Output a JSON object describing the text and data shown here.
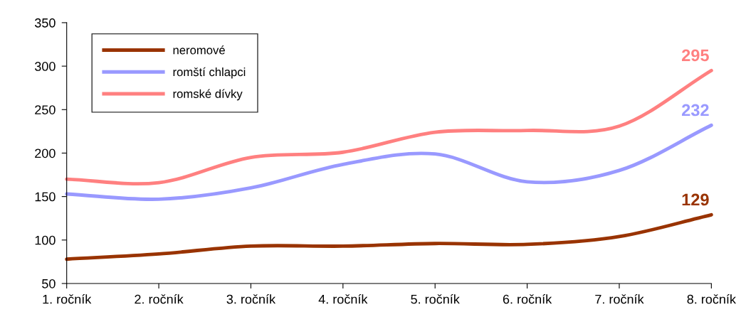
{
  "chart_data": {
    "type": "line",
    "categories": [
      "1. ročník",
      "2. ročník",
      "3. ročník",
      "4. ročník",
      "5. ročník",
      "6. ročník",
      "7. ročník",
      "8. ročník"
    ],
    "series": [
      {
        "name": "neromové",
        "color": "#993300",
        "values": [
          78,
          84,
          93,
          93,
          96,
          95,
          104,
          129
        ],
        "value_labels": [
          null,
          null,
          null,
          null,
          null,
          null,
          null,
          "129"
        ]
      },
      {
        "name": "romští chlapci",
        "color": "#9999ff",
        "values": [
          153,
          147,
          160,
          187,
          199,
          167,
          180,
          232
        ],
        "value_labels": [
          null,
          null,
          null,
          null,
          null,
          null,
          null,
          "232"
        ]
      },
      {
        "name": "romské dívky",
        "color": "#ff8080",
        "values": [
          170,
          166,
          195,
          201,
          224,
          226,
          231,
          295
        ],
        "value_labels": [
          null,
          null,
          null,
          null,
          null,
          null,
          null,
          "295"
        ]
      }
    ],
    "ylim": [
      50,
      350
    ],
    "yticks": [
      50,
      100,
      150,
      200,
      250,
      300,
      350
    ],
    "grid": false,
    "legend": "top left",
    "marker": "none",
    "line_style": "solid"
  }
}
